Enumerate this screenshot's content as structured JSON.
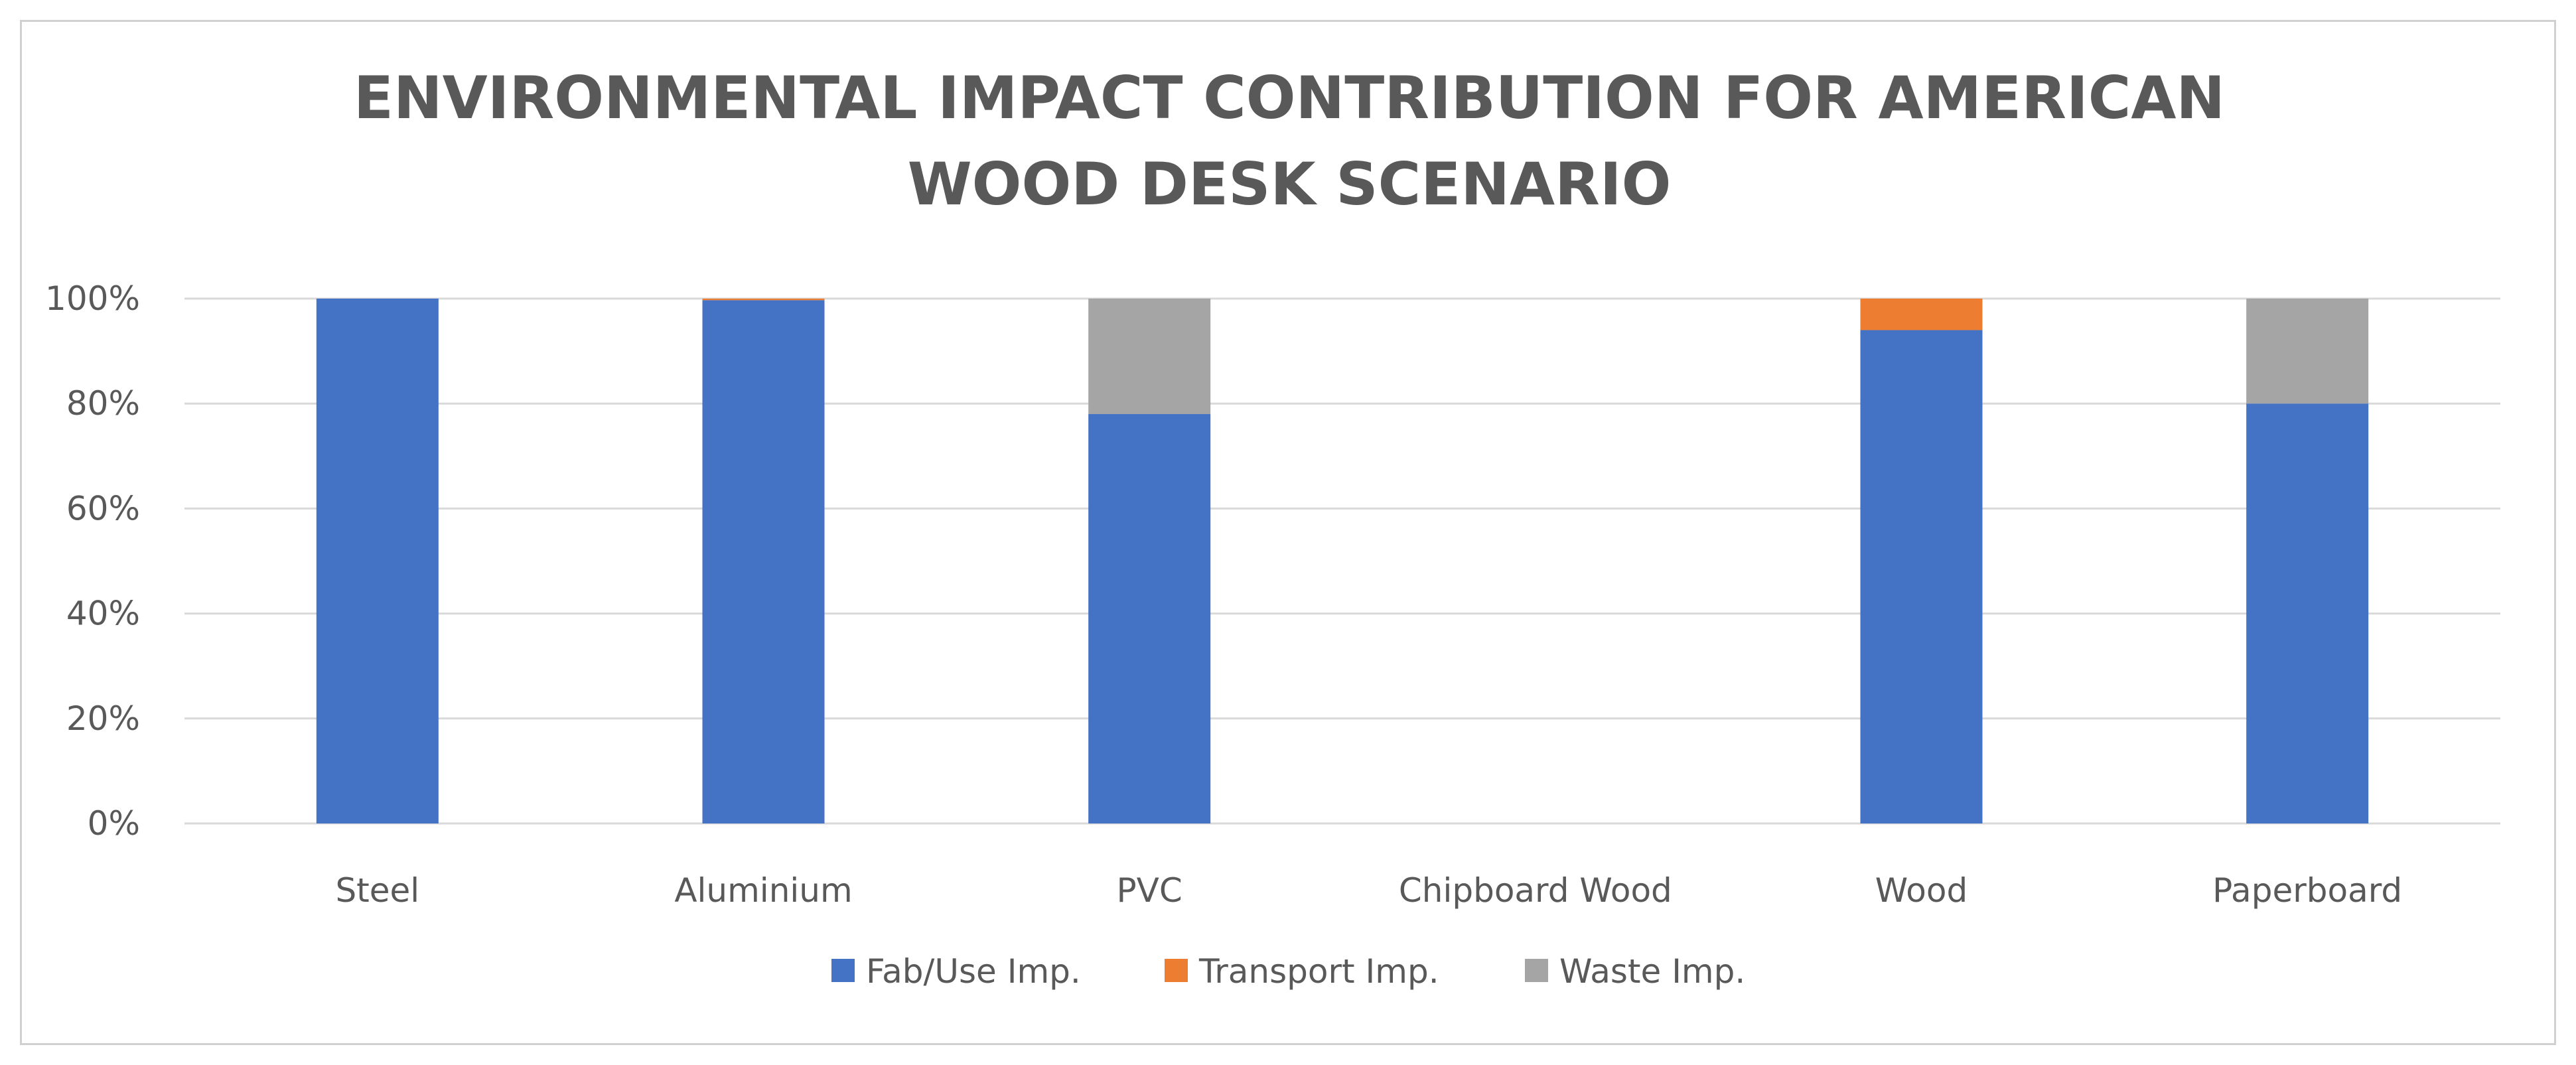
{
  "chart_data": {
    "type": "bar",
    "stacked": true,
    "percent_stacked": true,
    "title_lines": [
      "ENVIRONMENTAL IMPACT CONTRIBUTION FOR AMERICAN",
      "WOOD DESK SCENARIO"
    ],
    "categories": [
      "Steel",
      "Aluminium",
      "PVC",
      "Chipboard Wood",
      "Wood",
      "Paperboard"
    ],
    "series": [
      {
        "name": "Fab/Use Imp.",
        "color": "#4472C4",
        "values": [
          100,
          99.7,
          78,
          0,
          94,
          80
        ]
      },
      {
        "name": "Transport Imp.",
        "color": "#ED7D31",
        "values": [
          0,
          0.3,
          0,
          0,
          6,
          0
        ]
      },
      {
        "name": "Waste Imp.",
        "color": "#A5A5A5",
        "values": [
          0,
          0,
          22,
          0,
          0,
          20
        ]
      }
    ],
    "y_ticks": [
      "0%",
      "20%",
      "40%",
      "60%",
      "80%",
      "100%"
    ],
    "ylim": [
      0,
      100
    ],
    "grid": true,
    "legend_position": "bottom",
    "gridline_color": "#d9d9d9"
  }
}
